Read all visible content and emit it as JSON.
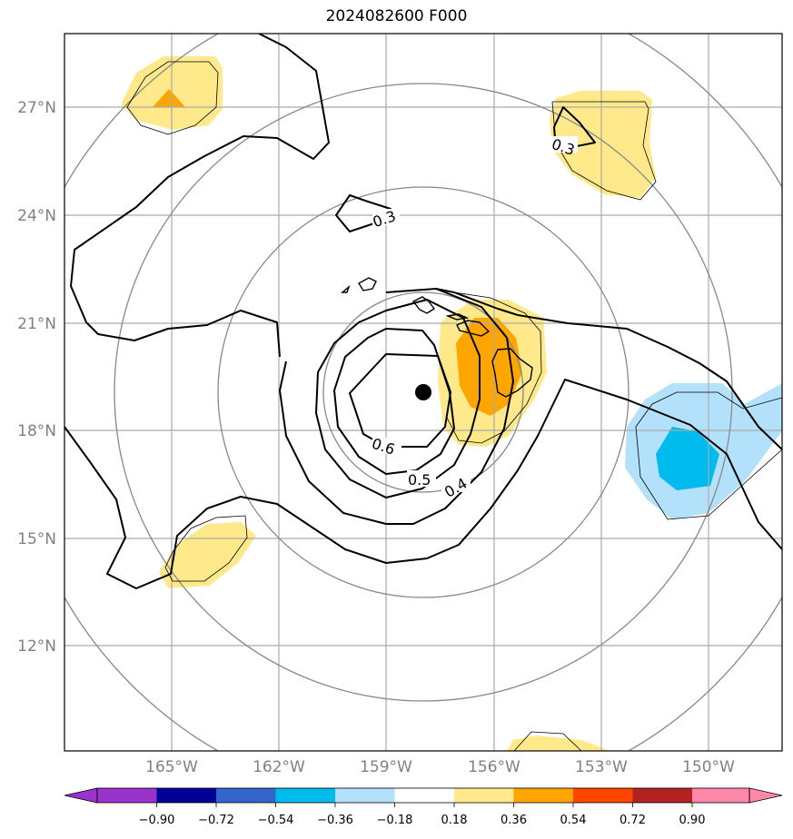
{
  "title": "2024082600 F000",
  "lat_labels": [
    "27°N",
    "24°N",
    "21°N",
    "18°N",
    "15°N",
    "12°N"
  ],
  "lon_labels": [
    "165°W",
    "162°W",
    "159°W",
    "156°W",
    "153°W",
    "150°W"
  ],
  "contour_labels": [
    "0.3",
    "0.3",
    "0.6",
    "0.5",
    "0.4"
  ],
  "colorbar": {
    "ticks": [
      "−0.90",
      "−0.72",
      "−0.54",
      "−0.36",
      "−0.18",
      "0.18",
      "0.36",
      "0.54",
      "0.72",
      "0.90"
    ],
    "colors": [
      "#9933cc",
      "#000099",
      "#3366cc",
      "#00bbee",
      "#b3e0fb",
      "#ffffff",
      "#ffe98a",
      "#ffa500",
      "#ff4500",
      "#b22222",
      "#ff88aa"
    ]
  },
  "fill_colors": {
    "light_yellow": "#ffe98a",
    "orange": "#ffa500",
    "light_blue": "#b3e0fb",
    "cyan": "#00bbee"
  },
  "center_marker": "storm-center"
}
